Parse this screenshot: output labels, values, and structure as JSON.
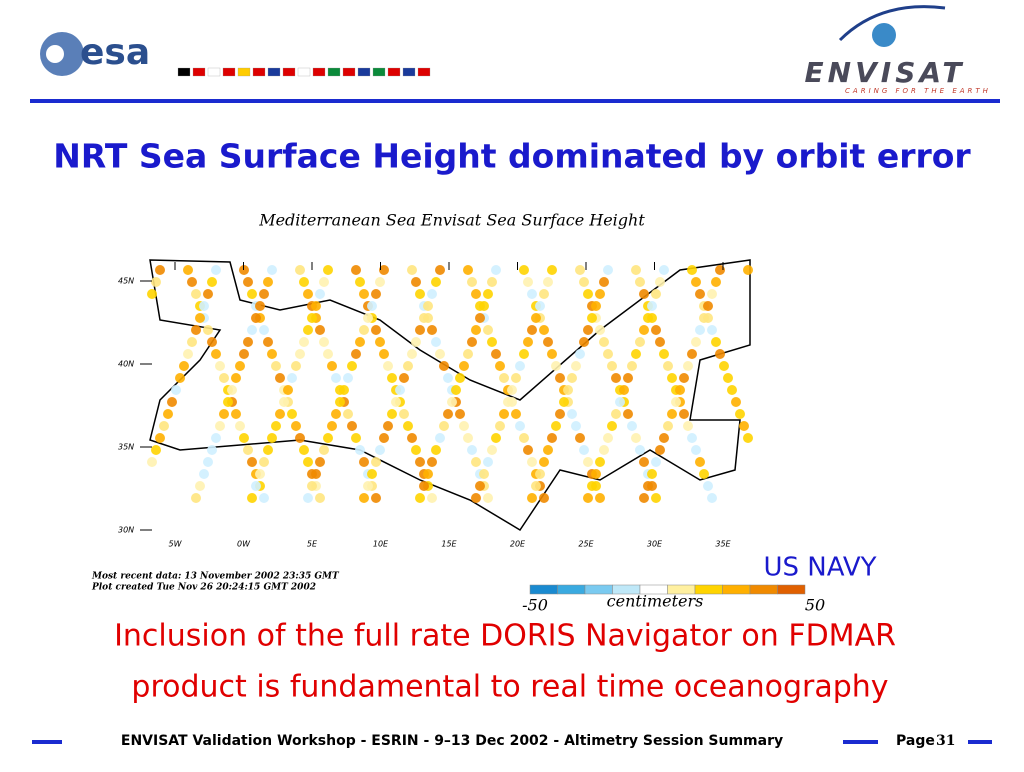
{
  "header": {
    "logo_left": "esa",
    "logo_right": "ENVISAT",
    "logo_right_tagline": "CARING FOR THE EARTH"
  },
  "title": "NRT Sea Surface Height dominated by orbit error",
  "figure": {
    "title": "Mediterranean Sea Envisat Sea Surface Height",
    "lat_labels": [
      "45N",
      "40N",
      "35N",
      "30N"
    ],
    "lon_labels": [
      "5W",
      "0W",
      "5E",
      "10E",
      "15E",
      "20E",
      "25E",
      "30E",
      "35E"
    ],
    "notes": [
      "Most recent data: 13 November 2002  23:35 GMT",
      "Plot created Tue Nov 26 20:24:15 GMT 2002"
    ],
    "colorbar": {
      "min": -50,
      "unit": "centimeters",
      "max": 50
    },
    "credit": "US NAVY"
  },
  "conclusion": [
    "Inclusion of the full rate DORIS Navigator on FDMAR",
    "product is fundamental to real time oceanography"
  ],
  "footer": {
    "text": "ENVISAT Validation Workshop - ESRIN - 9–13 Dec 2002 - Altimetry Session Summary",
    "page_label": "Page",
    "page_number": 31
  }
}
